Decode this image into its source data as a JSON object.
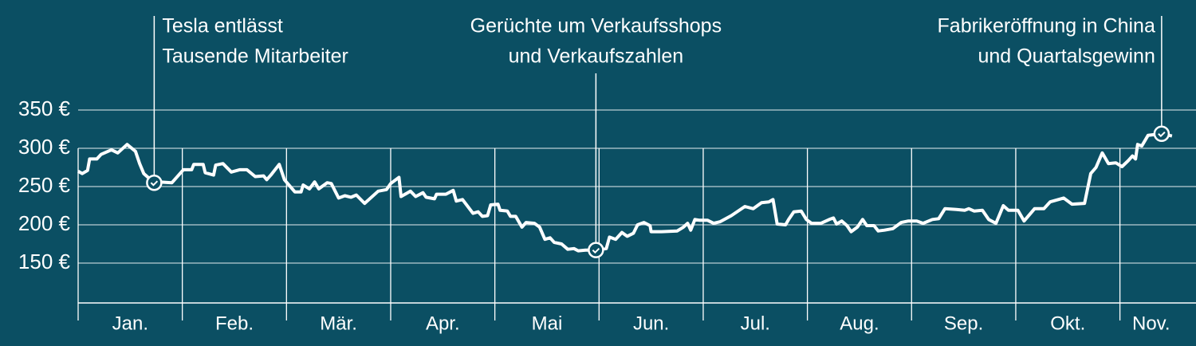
{
  "chart_data": {
    "type": "line",
    "categories": [
      "Jan.",
      "Feb.",
      "Mär.",
      "Apr.",
      "Mai",
      "Jun.",
      "Jul.",
      "Aug.",
      "Sep.",
      "Okt.",
      "Nov."
    ],
    "xlim": [
      0,
      10.6
    ],
    "ylim": [
      100,
      350
    ],
    "yticks": [
      {
        "value": 150,
        "label": "150 €"
      },
      {
        "value": 200,
        "label": "200 €"
      },
      {
        "value": 250,
        "label": "250 €"
      },
      {
        "value": 300,
        "label": "300 €"
      },
      {
        "value": 350,
        "label": "350 €"
      }
    ],
    "grid": true,
    "color": "#ffffff",
    "x": [
      0.0,
      0.04,
      0.09,
      0.11,
      0.18,
      0.22,
      0.32,
      0.38,
      0.47,
      0.55,
      0.59,
      0.63,
      0.73,
      0.78,
      0.9,
      1.01,
      1.09,
      1.11,
      1.2,
      1.22,
      1.3,
      1.32,
      1.39,
      1.47,
      1.55,
      1.62,
      1.7,
      1.78,
      1.81,
      1.85,
      1.93,
      1.98,
      2.08,
      2.14,
      2.16,
      2.22,
      2.27,
      2.31,
      2.39,
      2.43,
      2.5,
      2.56,
      2.62,
      2.67,
      2.75,
      2.88,
      2.96,
      3.0,
      3.08,
      3.1,
      3.19,
      3.24,
      3.31,
      3.34,
      3.42,
      3.44,
      3.53,
      3.6,
      3.63,
      3.69,
      3.79,
      3.84,
      3.88,
      3.93,
      3.96,
      4.03,
      4.05,
      4.12,
      4.15,
      4.2,
      4.26,
      4.3,
      4.38,
      4.43,
      4.48,
      4.53,
      4.57,
      4.64,
      4.7,
      4.76,
      4.8,
      4.87,
      4.97,
      5.07,
      5.1,
      5.16,
      5.22,
      5.27,
      5.33,
      5.37,
      5.43,
      5.49,
      5.5,
      5.6,
      5.75,
      5.81,
      5.85,
      5.88,
      5.92,
      5.96,
      6.04,
      6.1,
      6.16,
      6.27,
      6.4,
      6.48,
      6.56,
      6.63,
      6.67,
      6.71,
      6.79,
      6.82,
      6.87,
      6.94,
      6.99,
      7.04,
      7.13,
      7.21,
      7.25,
      7.28,
      7.33,
      7.38,
      7.42,
      7.48,
      7.53,
      7.57,
      7.64,
      7.68,
      7.74,
      7.82,
      7.9,
      7.97,
      8.05,
      8.11,
      8.2,
      8.26,
      8.32,
      8.43,
      8.51,
      8.55,
      8.6,
      8.68,
      8.74,
      8.81,
      8.88,
      8.93,
      9.02,
      9.08,
      9.18,
      9.27,
      9.33,
      9.46,
      9.54,
      9.66,
      9.72,
      9.77,
      9.83,
      9.89,
      9.96,
      10.02,
      10.08,
      10.12,
      10.15,
      10.17,
      10.21,
      10.27,
      10.4,
      10.5
    ],
    "values": [
      270,
      267,
      271,
      286,
      286,
      292,
      298,
      294,
      305,
      296,
      280,
      267,
      255,
      256,
      255,
      272,
      272,
      279,
      279,
      268,
      265,
      278,
      280,
      269,
      272,
      272,
      263,
      264,
      259,
      265,
      279,
      259,
      243,
      243,
      252,
      247,
      256,
      247,
      255,
      254,
      235,
      238,
      236,
      239,
      228,
      244,
      246,
      254,
      262,
      237,
      244,
      237,
      242,
      236,
      234,
      240,
      240,
      245,
      231,
      233,
      215,
      217,
      211,
      212,
      226,
      227,
      219,
      218,
      211,
      211,
      197,
      203,
      202,
      197,
      181,
      183,
      177,
      175,
      168,
      169,
      166,
      167,
      167,
      169,
      184,
      181,
      190,
      185,
      189,
      200,
      203,
      199,
      191,
      191,
      192,
      197,
      202,
      193,
      207,
      206,
      206,
      202,
      204,
      212,
      224,
      221,
      229,
      230,
      233,
      201,
      200,
      207,
      217,
      218,
      207,
      202,
      202,
      207,
      209,
      201,
      205,
      199,
      191,
      197,
      207,
      199,
      199,
      192,
      193,
      195,
      203,
      205,
      205,
      202,
      207,
      208,
      221,
      220,
      219,
      221,
      218,
      219,
      207,
      202,
      225,
      219,
      219,
      205,
      221,
      221,
      230,
      235,
      227,
      228,
      267,
      275,
      294,
      280,
      281,
      276,
      284,
      290,
      286,
      305,
      303,
      317,
      319,
      316
    ],
    "annotations": [
      {
        "lines": [
          "Tesla entlässt",
          "Tausende Mitarbeiter"
        ],
        "x": 0.73,
        "y": 255
      },
      {
        "lines": [
          "Gerüchte um Verkaufsshops",
          "und Verkaufszahlen"
        ],
        "x": 4.97,
        "y": 167
      },
      {
        "lines": [
          "Fabrikeröffnung in China",
          "und Quartalsgewinn"
        ],
        "x": 10.4,
        "y": 319
      }
    ]
  }
}
